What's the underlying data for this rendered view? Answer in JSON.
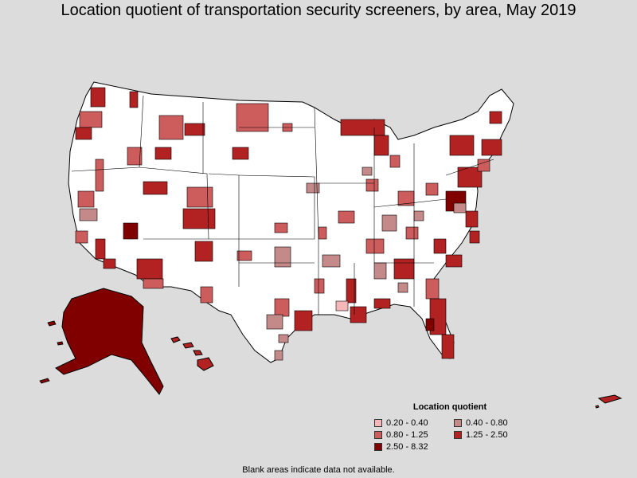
{
  "title": "Location quotient of transportation security screeners, by area, May 2019",
  "legend": {
    "title": "Location quotient",
    "items": [
      {
        "label": "0.20 - 0.40",
        "color": "#f4b8b8"
      },
      {
        "label": "0.40 - 0.80",
        "color": "#c48a8a"
      },
      {
        "label": "0.80 - 1.25",
        "color": "#cd5c5c"
      },
      {
        "label": "1.25 - 2.50",
        "color": "#b22222"
      },
      {
        "label": "2.50 - 8.32",
        "color": "#800000"
      }
    ]
  },
  "footnote": "Blank areas indicate data not available.",
  "colors": {
    "background": "#dcdcdc",
    "land": "#ffffff",
    "border": "#000000"
  }
}
